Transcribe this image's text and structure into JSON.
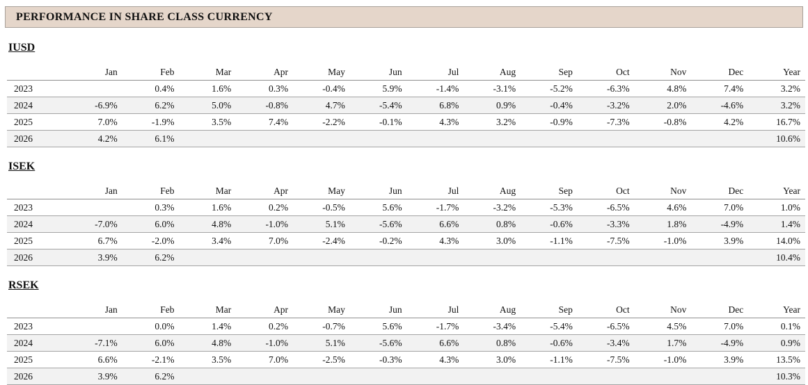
{
  "header": {
    "title": "PERFORMANCE IN SHARE CLASS CURRENCY"
  },
  "columns": [
    "Jan",
    "Feb",
    "Mar",
    "Apr",
    "May",
    "Jun",
    "Jul",
    "Aug",
    "Sep",
    "Oct",
    "Nov",
    "Dec",
    "Year"
  ],
  "sections": [
    {
      "name": "IUSD",
      "rows": [
        {
          "year": "2023",
          "values": [
            "",
            "0.4%",
            "1.6%",
            "0.3%",
            "-0.4%",
            "5.9%",
            "-1.4%",
            "-3.1%",
            "-5.2%",
            "-6.3%",
            "4.8%",
            "7.4%",
            "3.2%"
          ]
        },
        {
          "year": "2024",
          "values": [
            "-6.9%",
            "6.2%",
            "5.0%",
            "-0.8%",
            "4.7%",
            "-5.4%",
            "6.8%",
            "0.9%",
            "-0.4%",
            "-3.2%",
            "2.0%",
            "-4.6%",
            "3.2%"
          ]
        },
        {
          "year": "2025",
          "values": [
            "7.0%",
            "-1.9%",
            "3.5%",
            "7.4%",
            "-2.2%",
            "-0.1%",
            "4.3%",
            "3.2%",
            "-0.9%",
            "-7.3%",
            "-0.8%",
            "4.2%",
            "16.7%"
          ]
        },
        {
          "year": "2026",
          "values": [
            "4.2%",
            "6.1%",
            "",
            "",
            "",
            "",
            "",
            "",
            "",
            "",
            "",
            "",
            "10.6%"
          ]
        }
      ]
    },
    {
      "name": "ISEK",
      "rows": [
        {
          "year": "2023",
          "values": [
            "",
            "0.3%",
            "1.6%",
            "0.2%",
            "-0.5%",
            "5.6%",
            "-1.7%",
            "-3.2%",
            "-5.3%",
            "-6.5%",
            "4.6%",
            "7.0%",
            "1.0%"
          ]
        },
        {
          "year": "2024",
          "values": [
            "-7.0%",
            "6.0%",
            "4.8%",
            "-1.0%",
            "5.1%",
            "-5.6%",
            "6.6%",
            "0.8%",
            "-0.6%",
            "-3.3%",
            "1.8%",
            "-4.9%",
            "1.4%"
          ]
        },
        {
          "year": "2025",
          "values": [
            "6.7%",
            "-2.0%",
            "3.4%",
            "7.0%",
            "-2.4%",
            "-0.2%",
            "4.3%",
            "3.0%",
            "-1.1%",
            "-7.5%",
            "-1.0%",
            "3.9%",
            "14.0%"
          ]
        },
        {
          "year": "2026",
          "values": [
            "3.9%",
            "6.2%",
            "",
            "",
            "",
            "",
            "",
            "",
            "",
            "",
            "",
            "",
            "10.4%"
          ]
        }
      ]
    },
    {
      "name": "RSEK",
      "rows": [
        {
          "year": "2023",
          "values": [
            "",
            "0.0%",
            "1.4%",
            "0.2%",
            "-0.7%",
            "5.6%",
            "-1.7%",
            "-3.4%",
            "-5.4%",
            "-6.5%",
            "4.5%",
            "7.0%",
            "0.1%"
          ]
        },
        {
          "year": "2024",
          "values": [
            "-7.1%",
            "6.0%",
            "4.8%",
            "-1.0%",
            "5.1%",
            "-5.6%",
            "6.6%",
            "0.8%",
            "-0.6%",
            "-3.4%",
            "1.7%",
            "-4.9%",
            "0.9%"
          ]
        },
        {
          "year": "2025",
          "values": [
            "6.6%",
            "-2.1%",
            "3.5%",
            "7.0%",
            "-2.5%",
            "-0.3%",
            "4.3%",
            "3.0%",
            "-1.1%",
            "-7.5%",
            "-1.0%",
            "3.9%",
            "13.5%"
          ]
        },
        {
          "year": "2026",
          "values": [
            "3.9%",
            "6.2%",
            "",
            "",
            "",
            "",
            "",
            "",
            "",
            "",
            "",
            "",
            "10.3%"
          ]
        }
      ]
    }
  ],
  "colors": {
    "header_background": "#e5d6ca",
    "header_border": "#a8a19a",
    "row_stripe": "#f2f2f2",
    "rule": "#8e8e8e",
    "text": "#111111"
  }
}
